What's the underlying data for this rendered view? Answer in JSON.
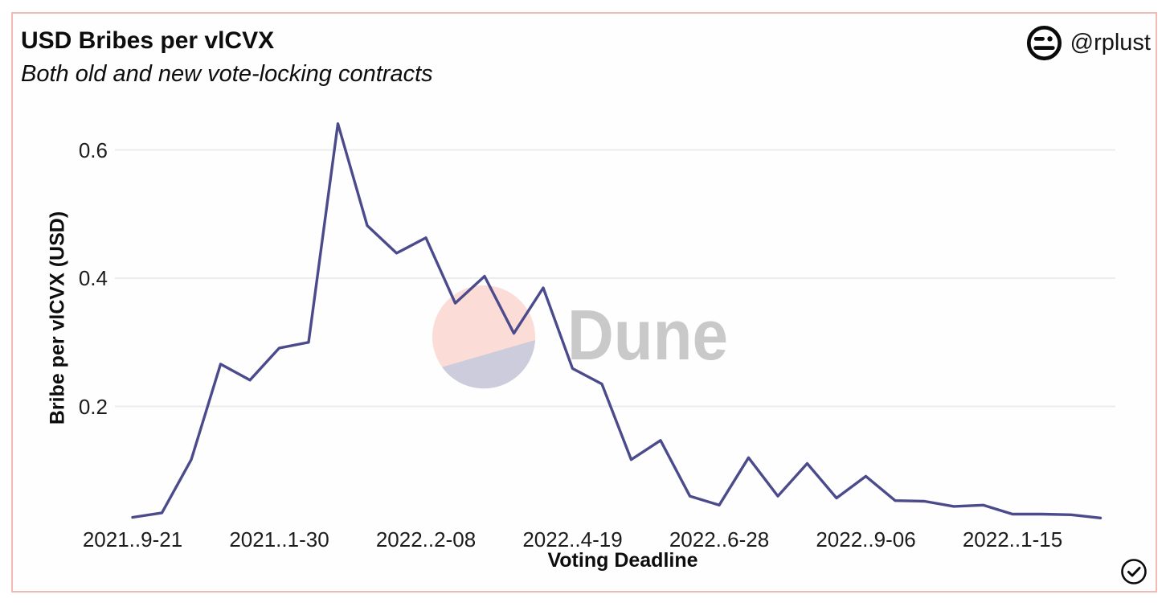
{
  "header": {
    "title": "USD Bribes per vlCVX",
    "subtitle": "Both old and new vote-locking contracts"
  },
  "attribution": {
    "handle": "@rplust",
    "avatar_icon": "expressionless-face-icon"
  },
  "watermark": {
    "label": "Dune",
    "text_color": "#c9c9c9",
    "logo_top_color": "#fbdcd7",
    "logo_bottom_color": "#ccccdd"
  },
  "status": {
    "verified_icon": "check-circle-icon"
  },
  "colors": {
    "card_border": "#f2bab3",
    "line": "#4b4b8c",
    "gridline": "#ececec",
    "background": "#fefefe"
  },
  "chart_data": {
    "type": "line",
    "title": "USD Bribes per vlCVX",
    "subtitle": "Both old and new vote-locking contracts",
    "xlabel": "Voting Deadline",
    "ylabel": "Bribe per vlCVX (USD)",
    "grid": "horizontal-only",
    "legend": "none",
    "ylim": [
      0,
      0.66
    ],
    "y_ticks": [
      0.2,
      0.4,
      0.6
    ],
    "y_tick_labels": [
      "0.2",
      "0.4",
      "0.6"
    ],
    "x_tick_labels_displayed": [
      "2021..9-21",
      "2021..1-30",
      "2022..2-08",
      "2022..4-19",
      "2022..6-28",
      "2022..9-06",
      "2022..1-15"
    ],
    "x_tick_full_dates": [
      "2021-09-21",
      "2021-11-30",
      "2022-02-08",
      "2022-04-19",
      "2022-06-28",
      "2022-09-06",
      "2022-11-15"
    ],
    "x_tick_point_indices": [
      0,
      5,
      10,
      15,
      20,
      25,
      30
    ],
    "x": [
      "2021-09-21",
      "2021-10-05",
      "2021-10-19",
      "2021-11-02",
      "2021-11-16",
      "2021-11-30",
      "2021-12-14",
      "2021-12-28",
      "2022-01-11",
      "2022-01-25",
      "2022-02-08",
      "2022-02-22",
      "2022-03-08",
      "2022-03-22",
      "2022-04-05",
      "2022-04-19",
      "2022-05-03",
      "2022-05-17",
      "2022-05-31",
      "2022-06-14",
      "2022-06-28",
      "2022-07-12",
      "2022-07-26",
      "2022-08-09",
      "2022-08-23",
      "2022-09-06",
      "2022-09-20",
      "2022-10-04",
      "2022-10-18",
      "2022-11-01",
      "2022-11-15",
      "2022-11-29",
      "2022-12-13",
      "2022-12-27"
    ],
    "values": [
      0.027,
      0.034,
      0.117,
      0.266,
      0.241,
      0.291,
      0.3,
      0.641,
      0.482,
      0.439,
      0.463,
      0.361,
      0.403,
      0.314,
      0.385,
      0.259,
      0.235,
      0.117,
      0.147,
      0.06,
      0.046,
      0.12,
      0.06,
      0.111,
      0.057,
      0.091,
      0.053,
      0.052,
      0.044,
      0.046,
      0.032,
      0.032,
      0.031,
      0.026
    ]
  }
}
